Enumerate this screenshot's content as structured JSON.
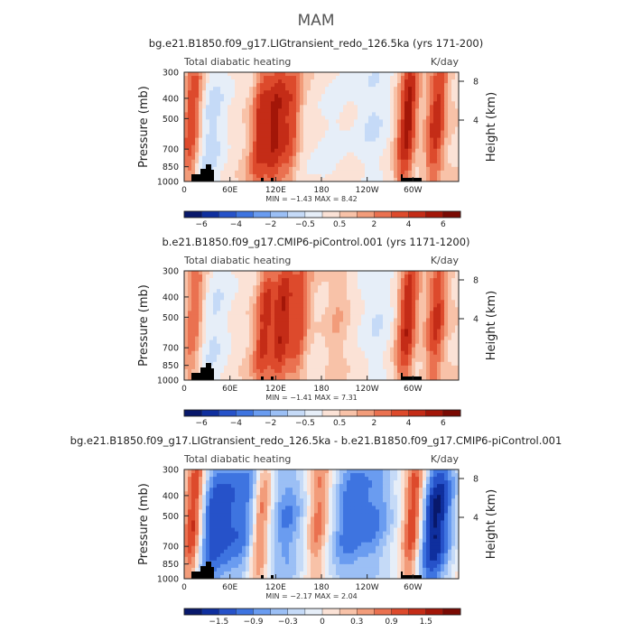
{
  "figure_title": "MAM",
  "panel_colors": [
    "#08186b",
    "#0f2f9e",
    "#2652c9",
    "#3e74e0",
    "#6a9cf0",
    "#9bbff5",
    "#c5daf7",
    "#e6eef8",
    "#fbe2d6",
    "#f8c2a8",
    "#f29c7a",
    "#ea7150",
    "#dd4a2c",
    "#c42c17",
    "#a31608",
    "#7a0a03"
  ],
  "chart_data": [
    {
      "type": "heatmap",
      "title": "bg.e21.B1850.f09_g17.LIGtransient_redo_126.5ka (yrs 171-200)",
      "left_label": "Total diabatic heating",
      "right_label": "K/day",
      "ylabel": "Pressure (mb)",
      "y2label": "Height (km)",
      "ylim": [
        1000,
        300
      ],
      "y_ticks": [
        "300",
        "400",
        "500",
        "700",
        "850",
        "1000"
      ],
      "y2_ticks": [
        "8",
        "4"
      ],
      "x_ticks": [
        "0",
        "60E",
        "120E",
        "180",
        "120W",
        "60W"
      ],
      "minmax": "MIN = −1.43   MAX =   8.42",
      "colorbar_labels": [
        "−6",
        "−4",
        "−2",
        "−0.5",
        "0.5",
        "2",
        "4",
        "6"
      ],
      "ridges": [
        {
          "lon": 10,
          "amp": 2.7
        },
        {
          "lon": 35,
          "amp": -1.2
        },
        {
          "lon": 100,
          "amp": 2.5
        },
        {
          "lon": 120,
          "amp": 2.8
        },
        {
          "lon": 140,
          "amp": 2.2
        },
        {
          "lon": 195,
          "amp": -0.6
        },
        {
          "lon": 245,
          "amp": -0.8
        },
        {
          "lon": 292,
          "amp": 3.3
        },
        {
          "lon": 330,
          "amp": 2.6
        }
      ]
    },
    {
      "type": "heatmap",
      "title": "b.e21.B1850.f09_g17.CMIP6-piControl.001 (yrs 1171-1200)",
      "left_label": "Total diabatic heating",
      "right_label": "K/day",
      "ylabel": "Pressure (mb)",
      "y2label": "Height (km)",
      "ylim": [
        1000,
        300
      ],
      "y_ticks": [
        "300",
        "400",
        "500",
        "700",
        "850",
        "1000"
      ],
      "y2_ticks": [
        "8",
        "4"
      ],
      "x_ticks": [
        "0",
        "60E",
        "120E",
        "180",
        "120W",
        "60W"
      ],
      "minmax": "MIN =  −1.41   MAX =   7.31",
      "colorbar_labels": [
        "−6",
        "−4",
        "−2",
        "−0.5",
        "0.5",
        "2",
        "4",
        "6"
      ],
      "ridges": [
        {
          "lon": 12,
          "amp": 2.0
        },
        {
          "lon": 40,
          "amp": -1.0
        },
        {
          "lon": 105,
          "amp": 2.6
        },
        {
          "lon": 128,
          "amp": 2.9
        },
        {
          "lon": 150,
          "amp": 2.2
        },
        {
          "lon": 200,
          "amp": 0.6
        },
        {
          "lon": 250,
          "amp": -0.7
        },
        {
          "lon": 292,
          "amp": 3.0
        },
        {
          "lon": 330,
          "amp": 2.4
        }
      ]
    },
    {
      "type": "heatmap",
      "title": "bg.e21.B1850.f09_g17.LIGtransient_redo_126.5ka - b.e21.B1850.f09_g17.CMIP6-piControl.001",
      "left_label": "Total diabatic heating",
      "right_label": "K/day",
      "ylabel": "Pressure (mb)",
      "y2label": "Height (km)",
      "ylim": [
        1000,
        300
      ],
      "y_ticks": [
        "300",
        "400",
        "500",
        "700",
        "850",
        "1000"
      ],
      "y2_ticks": [
        "8",
        "4"
      ],
      "x_ticks": [
        "0",
        "60E",
        "120E",
        "180",
        "120W",
        "60W"
      ],
      "minmax": "MIN =  −2.17   MAX =   2.04",
      "colorbar_labels": [
        "−1.5",
        "−0.9",
        "−0.3",
        "0",
        "0.3",
        "0.9",
        "1.5"
      ],
      "ridges": [
        {
          "lon": 12,
          "amp": 3.0
        },
        {
          "lon": 32,
          "amp": -1.8
        },
        {
          "lon": 55,
          "amp": -1.5
        },
        {
          "lon": 85,
          "amp": -1.8
        },
        {
          "lon": 100,
          "amp": 2.6
        },
        {
          "lon": 135,
          "amp": -1.5
        },
        {
          "lon": 175,
          "amp": 1.5
        },
        {
          "lon": 215,
          "amp": -2.0
        },
        {
          "lon": 250,
          "amp": -1.5
        },
        {
          "lon": 300,
          "amp": 2.6
        },
        {
          "lon": 330,
          "amp": -3.2
        }
      ]
    }
  ]
}
